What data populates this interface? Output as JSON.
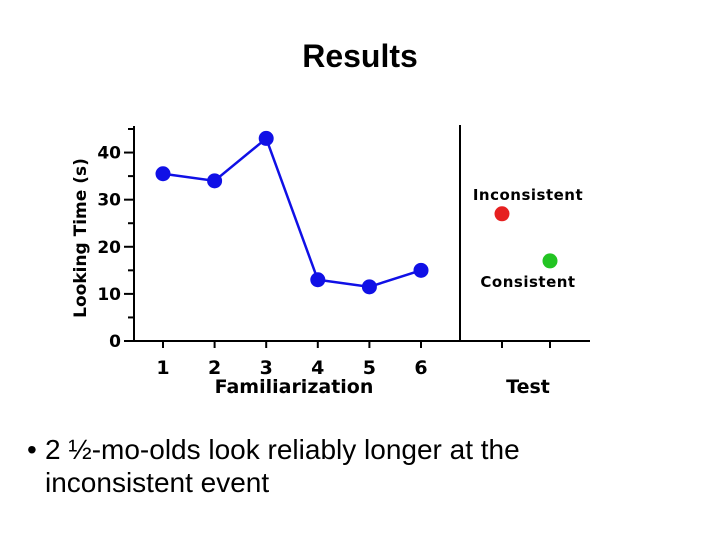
{
  "slide": {
    "title": "Results",
    "bullet_symbol": "•",
    "bullet": "2 ½-mo-olds look reliably longer at the inconsistent event"
  },
  "colors": {
    "series": "#1010e6",
    "inconsistent": "#e62020",
    "consistent": "#22c422"
  },
  "chart_data": {
    "type": "line",
    "ylabel": "Looking Time (s)",
    "ylim": [
      0,
      45
    ],
    "yticks": [
      0,
      10,
      20,
      30,
      40
    ],
    "panels": [
      {
        "xlabel": "Familiarization",
        "categories": [
          "1",
          "2",
          "3",
          "4",
          "5",
          "6"
        ],
        "series": [
          {
            "name": "Familiarization",
            "values": [
              35.5,
              34,
              43,
              13,
              11.5,
              15
            ]
          }
        ]
      },
      {
        "xlabel": "Test",
        "type": "scatter",
        "points": [
          {
            "label": "Inconsistent",
            "value": 27
          },
          {
            "label": "Consistent",
            "value": 17
          }
        ]
      }
    ]
  }
}
